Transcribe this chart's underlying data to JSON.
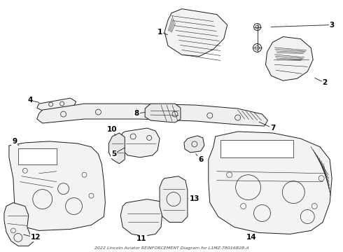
{
  "title": "2022 Lincoln Aviator REINFORCEMENT Diagram for L1MZ-78016B28-A",
  "background_color": "#ffffff",
  "line_color": "#1a1a1a",
  "fig_width": 4.9,
  "fig_height": 3.6,
  "dpi": 100
}
